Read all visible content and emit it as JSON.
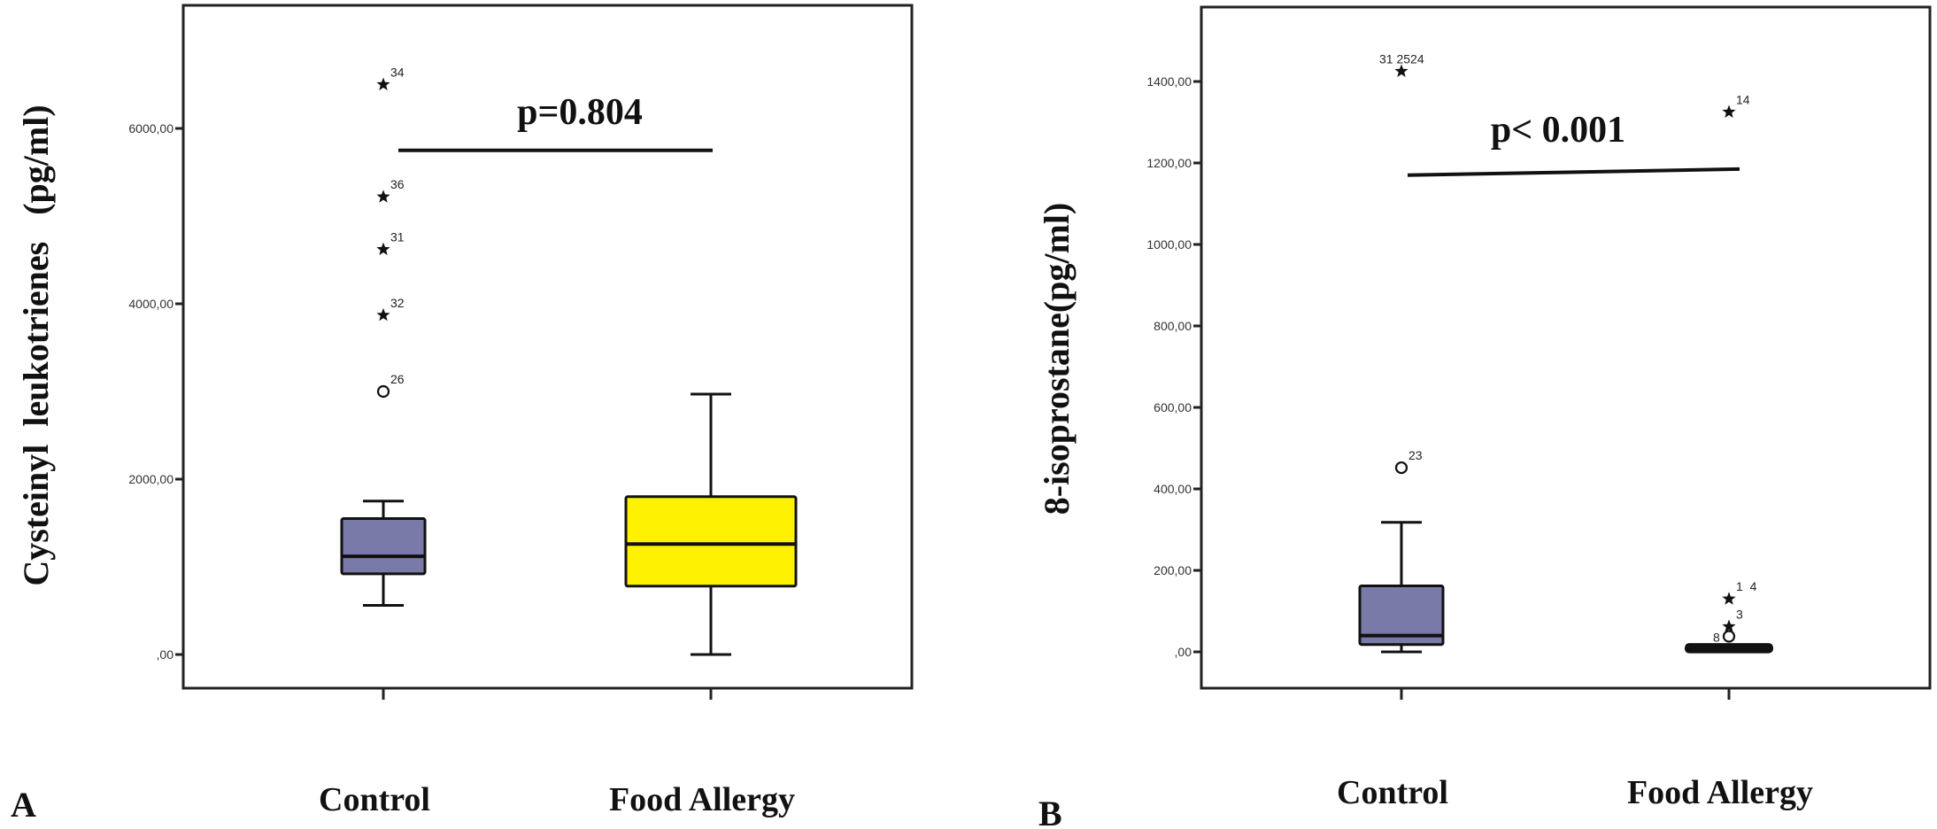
{
  "chart_data": [
    {
      "type": "box",
      "panel_label": "A",
      "ylabel": "Cysteinyl  leukotrienes   (pg/ml)",
      "ylim": [
        -900,
        7000
      ],
      "yticks": [
        0,
        2000,
        4000,
        6000
      ],
      "ytick_labels": [
        ",00",
        "2000,00",
        "4000,00",
        "6000,00"
      ],
      "categories": [
        "Control",
        "Food Allergy"
      ],
      "annotation": "p=0.804",
      "bracket_y": [
        5750,
        5750
      ],
      "colors": [
        "#7a7aa8",
        "#fff200"
      ],
      "boxes": [
        {
          "name": "Control",
          "whisker_low": 560,
          "q1": 920,
          "median": 1120,
          "q3": 1550,
          "whisker_high": 1750,
          "outliers": [
            {
              "value": 3000,
              "marker": "circle",
              "label": "26"
            },
            {
              "value": 3870,
              "marker": "star",
              "label": "32"
            },
            {
              "value": 4620,
              "marker": "star",
              "label": "31"
            },
            {
              "value": 5220,
              "marker": "star",
              "label": "36"
            },
            {
              "value": 6500,
              "marker": "star",
              "label": "34"
            }
          ]
        },
        {
          "name": "Food Allergy",
          "whisker_low": 0,
          "q1": 780,
          "median": 1260,
          "q3": 1800,
          "whisker_high": 2970,
          "outliers": []
        }
      ]
    },
    {
      "type": "box",
      "panel_label": "B",
      "ylabel": "8-isoprostane(pg/ml)",
      "ylim": [
        -90,
        1580
      ],
      "yticks": [
        0,
        200,
        400,
        600,
        800,
        1000,
        1200,
        1400
      ],
      "ytick_labels": [
        ",00",
        "200,00",
        "400,00",
        "600,00",
        "800,00",
        "1000,00",
        "1200,00",
        "1400,00"
      ],
      "categories": [
        "Control",
        "Food Allergy"
      ],
      "annotation": "p< 0.001",
      "bracket_y": [
        1170,
        1185
      ],
      "colors": [
        "#7a7aa8",
        "#7a7aa8"
      ],
      "boxes": [
        {
          "name": "Control",
          "whisker_low": 0,
          "q1": 18,
          "median": 40,
          "q3": 162,
          "whisker_high": 318,
          "outliers": [
            {
              "value": 452,
              "marker": "circle",
              "label": "23"
            },
            {
              "value": 1425,
              "marker": "star",
              "label": "31 2524"
            }
          ]
        },
        {
          "name": "Food Allergy",
          "whisker_low": 0,
          "q1": 3,
          "median": 8,
          "q3": 15,
          "whisker_high": 15,
          "outliers": [
            {
              "value": 38,
              "marker": "circle",
              "label": "8"
            },
            {
              "value": 62,
              "marker": "star",
              "label": "3"
            },
            {
              "value": 130,
              "marker": "star",
              "label": "1  4"
            },
            {
              "value": 1325,
              "marker": "star",
              "label": "14"
            }
          ]
        }
      ]
    }
  ]
}
